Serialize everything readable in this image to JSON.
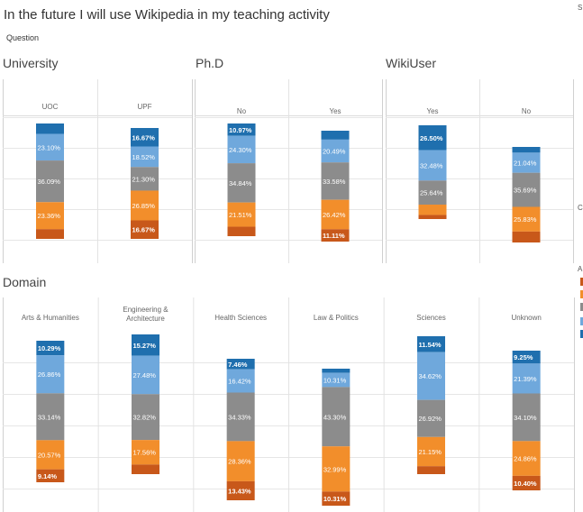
{
  "title": "In the future I will use Wikipedia in my teaching activity",
  "subtitle": "Question",
  "edge_glyphs": [
    "S",
    "C",
    "A"
  ],
  "colors": {
    "s1": "#1F6FAE",
    "s2": "#6FA8DC",
    "s3": "#8C8C8C",
    "s4": "#F28E2B",
    "s5": "#C8581A"
  },
  "chart_data": [
    {
      "type": "bar",
      "stacked": "100%",
      "title": "University",
      "categories": [
        "UOC",
        "UPF"
      ],
      "segments": [
        [
          {
            "value": 9.0
          },
          {
            "value": 23.1,
            "label": "23.10%"
          },
          {
            "value": 36.09,
            "label": "36.09%"
          },
          {
            "value": 23.36,
            "label": "23.36%"
          },
          {
            "value": 8.45
          }
        ],
        [
          {
            "value": 16.67,
            "label": "16.67%"
          },
          {
            "value": 18.52,
            "label": "18.52%"
          },
          {
            "value": 21.3,
            "label": "21.30%"
          },
          {
            "value": 26.85,
            "label": "26.85%"
          },
          {
            "value": 16.67,
            "label": "16.67%"
          }
        ]
      ]
    },
    {
      "type": "bar",
      "stacked": "100%",
      "title": "Ph.D",
      "categories": [
        "No",
        "Yes"
      ],
      "segments": [
        [
          {
            "value": 10.97,
            "label": "10.97%"
          },
          {
            "value": 24.3,
            "label": "24.30%"
          },
          {
            "value": 34.84,
            "label": "34.84%"
          },
          {
            "value": 21.51,
            "label": "21.51%"
          },
          {
            "value": 8.38
          }
        ],
        [
          {
            "value": 8.0
          },
          {
            "value": 20.49,
            "label": "20.49%"
          },
          {
            "value": 33.58,
            "label": "33.58%"
          },
          {
            "value": 26.42,
            "label": "26.42%"
          },
          {
            "value": 11.11,
            "label": "11.11%"
          }
        ]
      ]
    },
    {
      "type": "bar",
      "stacked": "100%",
      "title": "WikiUser",
      "categories": [
        "Yes",
        "No"
      ],
      "segments": [
        [
          {
            "value": 26.5,
            "label": "26.50%"
          },
          {
            "value": 32.48,
            "label": "32.48%"
          },
          {
            "value": 25.64,
            "label": "25.64%"
          },
          {
            "value": 11.0
          },
          {
            "value": 4.38
          }
        ],
        [
          {
            "value": 6.0
          },
          {
            "value": 21.04,
            "label": "21.04%"
          },
          {
            "value": 35.69,
            "label": "35.69%"
          },
          {
            "value": 25.83,
            "label": "25.83%"
          },
          {
            "value": 11.44
          }
        ]
      ]
    },
    {
      "type": "bar",
      "stacked": "100%",
      "title": "Domain",
      "categories": [
        "Arts & Humanities",
        "Engineering & Architecture",
        "Health Sciences",
        "Law & Politics",
        "Sciences",
        "Unknown"
      ],
      "segments": [
        [
          {
            "value": 10.29,
            "label": "10.29%"
          },
          {
            "value": 26.86,
            "label": "26.86%"
          },
          {
            "value": 33.14,
            "label": "33.14%"
          },
          {
            "value": 20.57,
            "label": "20.57%"
          },
          {
            "value": 9.14,
            "label": "9.14%"
          }
        ],
        [
          {
            "value": 15.27,
            "label": "15.27%"
          },
          {
            "value": 27.48,
            "label": "27.48%"
          },
          {
            "value": 32.82,
            "label": "32.82%"
          },
          {
            "value": 17.56,
            "label": "17.56%"
          },
          {
            "value": 6.87
          }
        ],
        [
          {
            "value": 7.46,
            "label": "7.46%"
          },
          {
            "value": 16.42,
            "label": "16.42%"
          },
          {
            "value": 34.33,
            "label": "34.33%"
          },
          {
            "value": 28.36,
            "label": "28.36%"
          },
          {
            "value": 13.43,
            "label": "13.43%"
          }
        ],
        [
          {
            "value": 3.09
          },
          {
            "value": 10.31,
            "label": "10.31%"
          },
          {
            "value": 43.3,
            "label": "43.30%"
          },
          {
            "value": 32.99,
            "label": "32.99%"
          },
          {
            "value": 10.31,
            "label": "10.31%"
          }
        ],
        [
          {
            "value": 11.54,
            "label": "11.54%"
          },
          {
            "value": 34.62,
            "label": "34.62%"
          },
          {
            "value": 26.92,
            "label": "26.92%"
          },
          {
            "value": 21.15,
            "label": "21.15%"
          },
          {
            "value": 5.77
          }
        ],
        [
          {
            "value": 9.25,
            "label": "9.25%"
          },
          {
            "value": 21.39,
            "label": "21.39%"
          },
          {
            "value": 34.1,
            "label": "34.10%"
          },
          {
            "value": 24.86,
            "label": "24.86%"
          },
          {
            "value": 10.4,
            "label": "10.40%"
          }
        ]
      ]
    }
  ]
}
